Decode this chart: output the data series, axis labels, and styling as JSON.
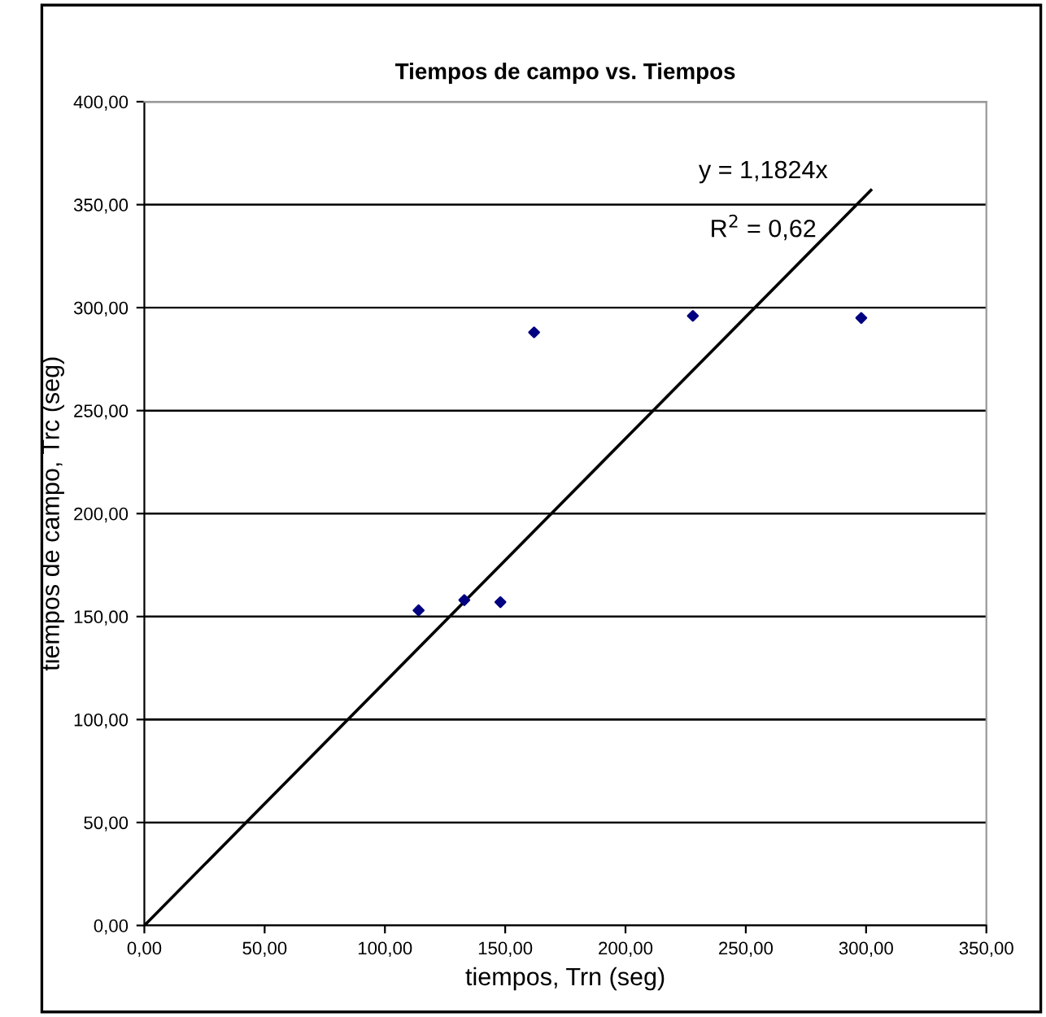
{
  "chart_data": {
    "type": "scatter",
    "title": "Tiempos de campo vs. Tiempos",
    "xlabel": "tiempos, Trn (seg)",
    "ylabel": "tiempos de campo, Trc (seg)",
    "x": [
      114,
      133,
      148,
      162,
      228,
      298
    ],
    "series": [
      {
        "color": "#000080",
        "values": [
          153,
          158,
          157,
          288,
          296,
          295
        ],
        "marker": "diamond"
      },
      {
        "type": "line",
        "color": "#000000",
        "x": [
          0,
          302
        ],
        "values": [
          0,
          357
        ],
        "marker": "none"
      }
    ],
    "annotations": [
      "y = 1,1824x",
      "R$^{2}$ = 0,62"
    ],
    "xlim": [
      0,
      350
    ],
    "ylim": [
      0,
      400
    ],
    "xticks": [
      {
        "value": 0,
        "label": "0,00"
      },
      {
        "value": 50,
        "label": "50,00"
      },
      {
        "value": 100,
        "label": "100,00"
      },
      {
        "value": 150,
        "label": "150,00"
      },
      {
        "value": 200,
        "label": "200,00"
      },
      {
        "value": 250,
        "label": "250,00"
      },
      {
        "value": 300,
        "label": "300,00"
      },
      {
        "value": 350,
        "label": "350,00"
      }
    ],
    "yticks": [
      {
        "value": 0,
        "label": "0,00"
      },
      {
        "value": 50,
        "label": "50,00"
      },
      {
        "value": 100,
        "label": "100,00"
      },
      {
        "value": 150,
        "label": "150,00"
      },
      {
        "value": 200,
        "label": "200,00"
      },
      {
        "value": 250,
        "label": "250,00"
      },
      {
        "value": 300,
        "label": "300,00"
      },
      {
        "value": 350,
        "label": "350,00"
      },
      {
        "value": 400,
        "label": "400,00"
      }
    ],
    "grid": "y"
  }
}
